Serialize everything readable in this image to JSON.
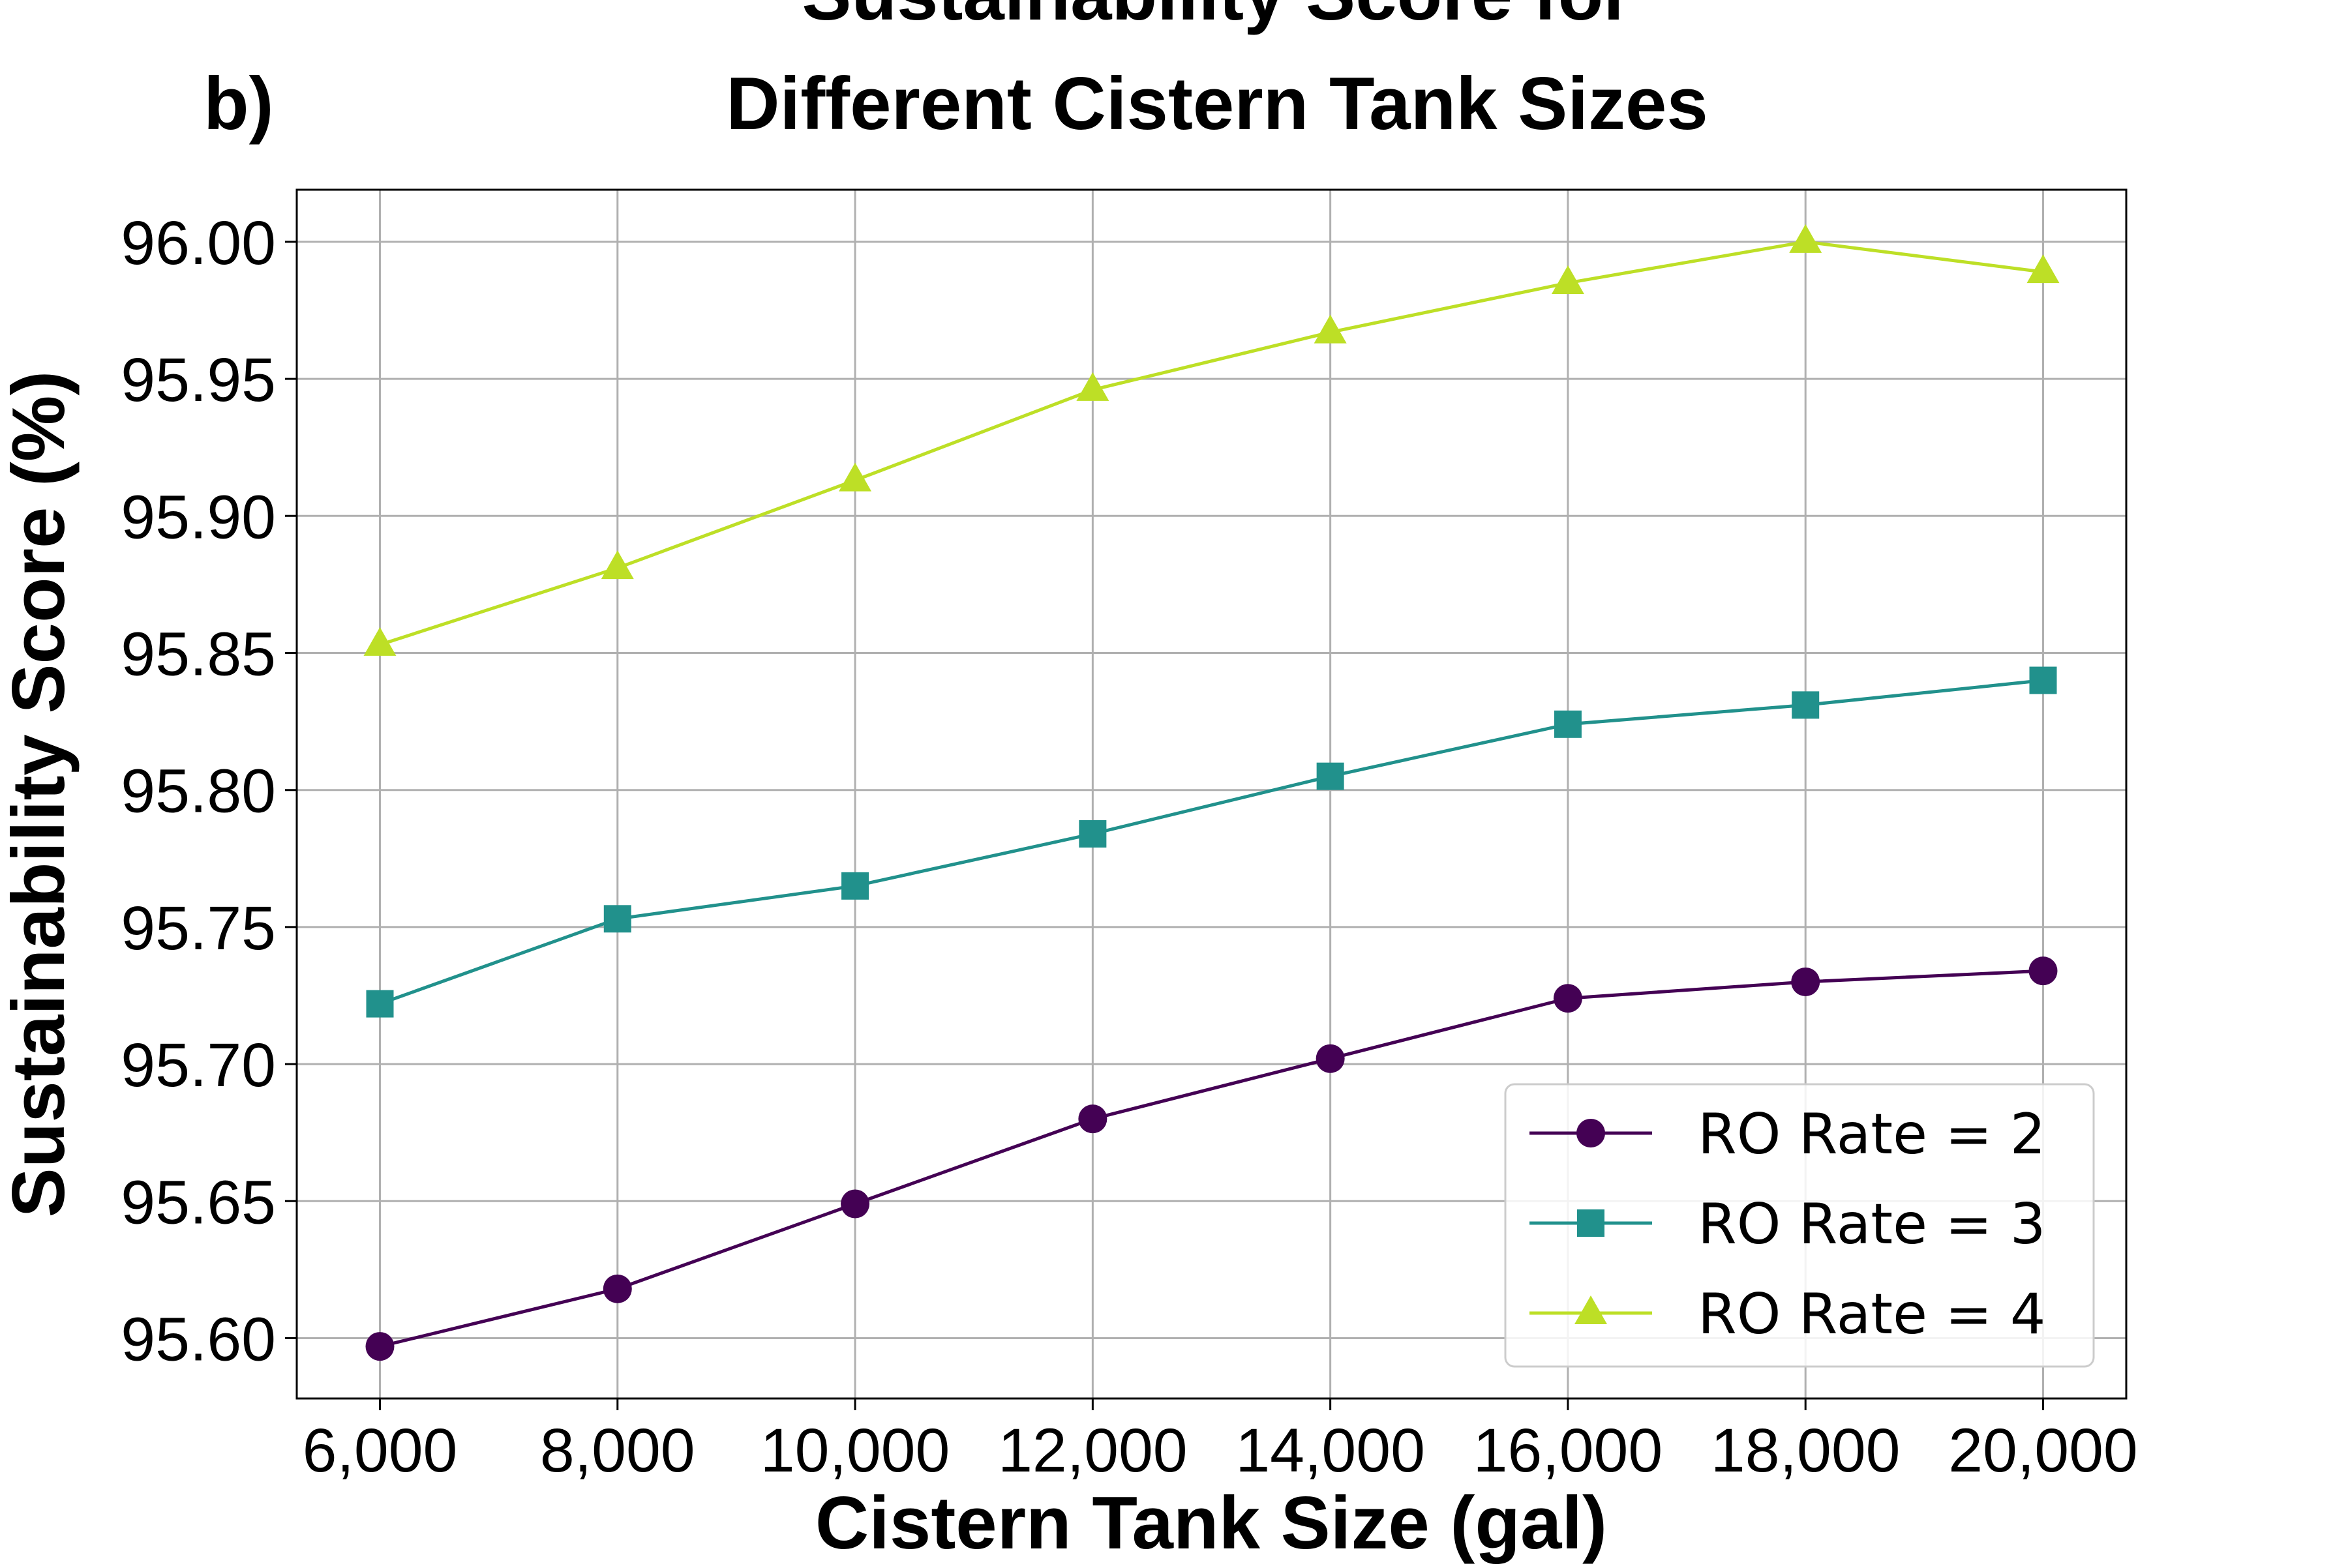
{
  "panel_label": "b)",
  "chart_data": {
    "type": "line",
    "title_lines": [
      "Sustainability Score for",
      "Different Cistern Tank Sizes"
    ],
    "xlabel": "Cistern Tank Size (gal)",
    "ylabel": "Sustainability Score (%)",
    "x": [
      6000,
      8000,
      10000,
      12000,
      14000,
      16000,
      18000,
      20000
    ],
    "x_tick_labels": [
      "6,000",
      "8,000",
      "10,000",
      "12,000",
      "14,000",
      "16,000",
      "18,000",
      "20,000"
    ],
    "y_ticks": [
      95.6,
      95.65,
      95.7,
      95.75,
      95.8,
      95.85,
      95.9,
      95.95,
      96.0
    ],
    "y_tick_labels": [
      "95.60",
      "95.65",
      "95.70",
      "95.75",
      "95.80",
      "95.85",
      "95.90",
      "95.95",
      "96.00"
    ],
    "xlim": [
      5300,
      20700
    ],
    "ylim": [
      95.578,
      96.019
    ],
    "grid": true,
    "legend_position": "lower right",
    "series": [
      {
        "name": "RO Rate = 2",
        "color": "#440154",
        "marker": "circle",
        "values": [
          95.597,
          95.618,
          95.649,
          95.68,
          95.702,
          95.724,
          95.73,
          95.734
        ]
      },
      {
        "name": "RO Rate = 3",
        "color": "#21918c",
        "marker": "square",
        "values": [
          95.722,
          95.753,
          95.765,
          95.784,
          95.805,
          95.824,
          95.831,
          95.84
        ]
      },
      {
        "name": "RO Rate = 4",
        "color": "#bddf26",
        "marker": "triangle",
        "values": [
          95.853,
          95.881,
          95.913,
          95.946,
          95.967,
          95.985,
          96.0,
          95.989
        ]
      }
    ]
  }
}
